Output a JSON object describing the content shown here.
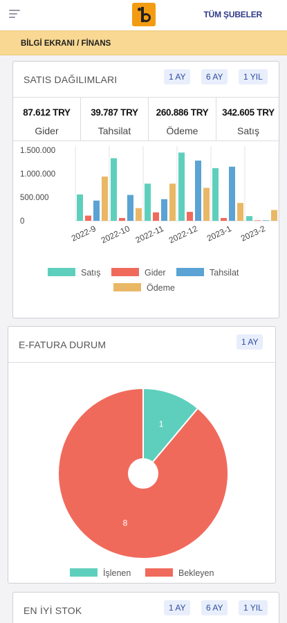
{
  "header": {
    "branch_label": "TÜM ŞUBELER"
  },
  "breadcrumb": "BİLGİ EKRANI / FİNANS",
  "sales": {
    "title": "SATIS DAĞILIMLARI",
    "periods": [
      "1 AY",
      "6 AY",
      "1 YIL"
    ],
    "stats": [
      {
        "value": "87.612 TRY",
        "label": "Gider"
      },
      {
        "value": "39.787 TRY",
        "label": "Tahsilat"
      },
      {
        "value": "260.886 TRY",
        "label": "Ödeme"
      },
      {
        "value": "342.605 TRY",
        "label": "Satış"
      }
    ]
  },
  "efatura": {
    "title": "E-FATURA DURUM",
    "period": "1 AY"
  },
  "stock": {
    "title": "EN İYİ STOK",
    "periods": [
      "1 AY",
      "6 AY",
      "1 YIL"
    ]
  },
  "chart_data": [
    {
      "type": "bar",
      "categories": [
        "2022-9",
        "2022-10",
        "2022-11",
        "2022-12",
        "2023-1",
        "2023-2"
      ],
      "y_ticks": [
        "1.500.000",
        "1.000.000",
        "500.000",
        "0"
      ],
      "ylim": [
        0,
        1500000
      ],
      "series": [
        {
          "name": "Satış",
          "color": "#5fcfbd",
          "values": [
            560000,
            1330000,
            790000,
            1450000,
            1120000,
            100000
          ]
        },
        {
          "name": "Gider",
          "color": "#f06a5c",
          "values": [
            110000,
            60000,
            180000,
            190000,
            60000,
            10000
          ]
        },
        {
          "name": "Tahsilat",
          "color": "#5aa3d4",
          "values": [
            430000,
            550000,
            460000,
            1280000,
            1150000,
            10000
          ]
        },
        {
          "name": "Ödeme",
          "color": "#e9b866",
          "values": [
            940000,
            270000,
            790000,
            700000,
            380000,
            230000
          ]
        }
      ],
      "grid": true,
      "legend": "bottom"
    },
    {
      "type": "pie",
      "slices": [
        {
          "name": "İşlenen",
          "value": 1,
          "color": "#5fcfbd"
        },
        {
          "name": "Bekleyen",
          "value": 8,
          "color": "#f06a5c"
        }
      ],
      "legend": "bottom"
    }
  ]
}
